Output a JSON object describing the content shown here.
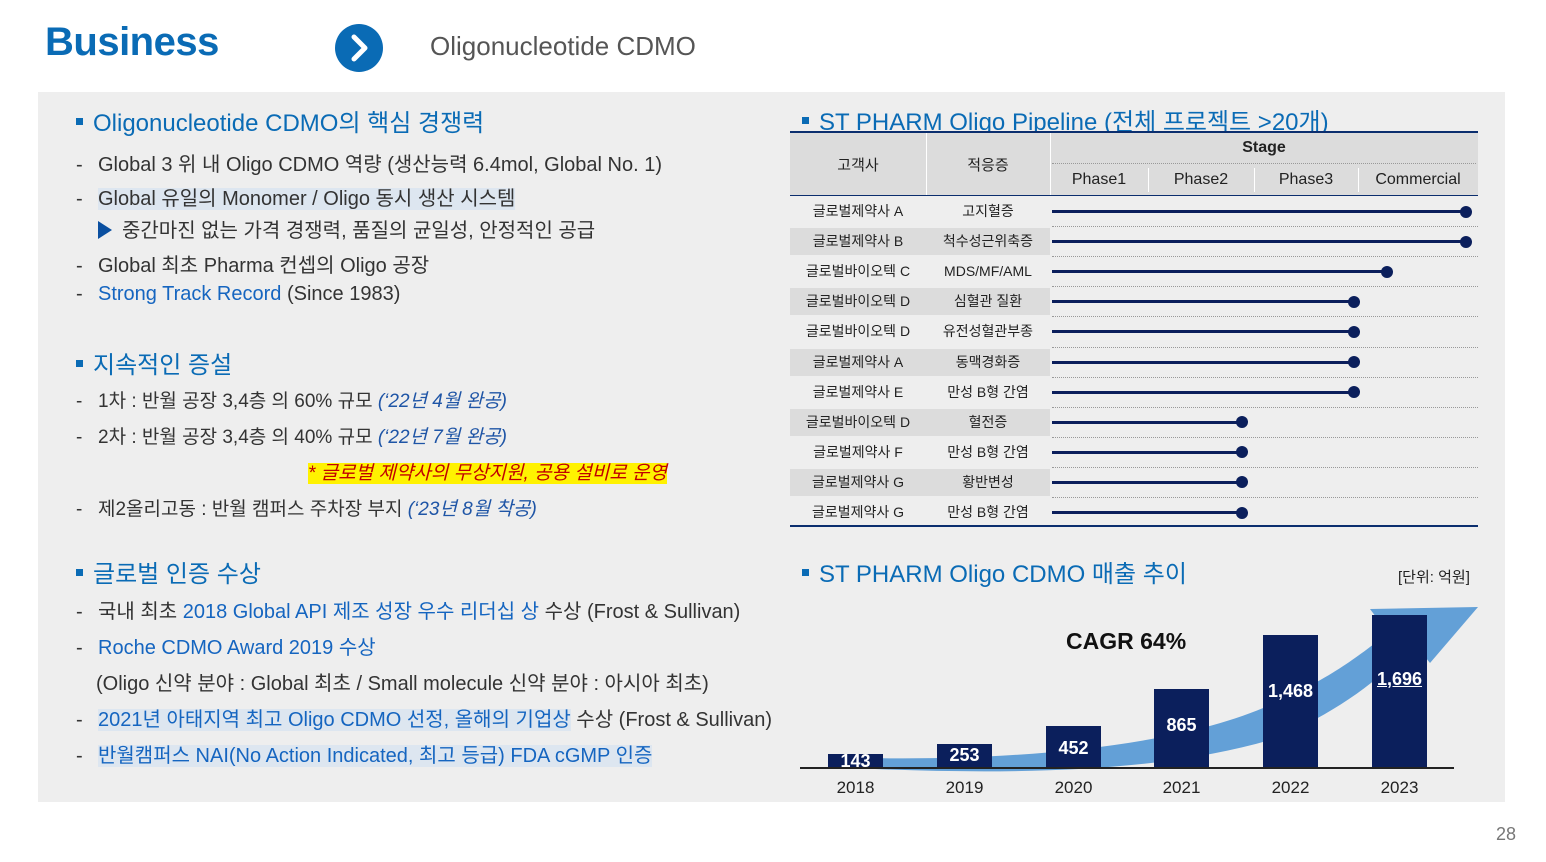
{
  "header": {
    "title": "Business",
    "subtitle": "Oligonucleotide CDMO",
    "page_number": "28"
  },
  "left": {
    "s1": {
      "heading": "Oligonucleotide CDMO의 핵심 경쟁력",
      "items": [
        "Global 3 위 내 Oligo CDMO 역량 (생산능력 6.4mol, Global No. 1)",
        "Global 유일의 Monomer / Oligo 동시 생산 시스템",
        "중간마진 없는 가격 경쟁력, 품질의 균일성, 안정적인 공급",
        "Global 최초 Pharma 컨셉의 Oligo 공장",
        "Strong Track Record",
        " (Since 1983)"
      ]
    },
    "s2": {
      "heading": "지속적인 증설",
      "item1": "1차 :  반월 공장 3,4층 의 60% 규모 ",
      "item1_note": "(‘22년  4월 완공)",
      "item2": "2차 : 반월 공장 3,4층 의 40% 규모 ",
      "item2_note": "(‘22년 7월 완공)",
      "highlight": "* 글로벌 제약사의 무상지원, 공용 설비로 운영",
      "item3": "제2올리고동 : 반월 캠퍼스 주차장 부지 ",
      "item3_note": "(‘23년 8월 착공)"
    },
    "s3": {
      "heading": "글로벌 인증 수상",
      "a_pre": "국내 최초 ",
      "a_blue": "2018 Global API 제조 성장 우수 리더십 상",
      "a_post": " 수상 (Frost & Sullivan)",
      "b": "Roche CDMO Award 2019 수상",
      "c": "(Oligo 신약 분야 : Global 최초 / Small molecule 신약 분야 : 아시아 최초)",
      "d_blue": "2021년 아태지역 최고 Oligo CDMO 선정, 올해의 기업상",
      "d_post": " 수상 (Frost & Sullivan)",
      "e": "반월캠퍼스 NAI(No Action Indicated, 최고 등급) FDA cGMP 인증"
    }
  },
  "pipeline": {
    "heading": "ST PHARM Oligo Pipeline  (전체 프로젝트 >20개)",
    "col_customer": "고객사",
    "col_indication": "적응증",
    "col_stage": "Stage",
    "phases": [
      "Phase1",
      "Phase2",
      "Phase3",
      "Commercial"
    ],
    "rows": [
      {
        "customer": "글로벌제약사 A",
        "indication": "고지혈증",
        "progress": 1.0
      },
      {
        "customer": "글로벌제약사 B",
        "indication": "척수성근위축증",
        "progress": 1.0
      },
      {
        "customer": "글로벌바이오텍 C",
        "indication": "MDS/MF/AML",
        "progress": 0.81
      },
      {
        "customer": "글로벌바이오텍 D",
        "indication": "심혈관 질환",
        "progress": 0.73
      },
      {
        "customer": "글로벌바이오텍 D",
        "indication": "유전성혈관부종",
        "progress": 0.73
      },
      {
        "customer": "글로벌제약사 A",
        "indication": "동맥경화증",
        "progress": 0.73
      },
      {
        "customer": "글로벌제약사 E",
        "indication": "만성 B형 간염",
        "progress": 0.73
      },
      {
        "customer": "글로벌바이오텍 D",
        "indication": "혈전증",
        "progress": 0.46
      },
      {
        "customer": "글로벌제약사 F",
        "indication": "만성 B형 간염",
        "progress": 0.46
      },
      {
        "customer": "글로벌제약사 G",
        "indication": "황반변성",
        "progress": 0.46
      },
      {
        "customer": "글로벌제약사 G",
        "indication": "만성 B형 간염",
        "progress": 0.46
      }
    ]
  },
  "revenue": {
    "heading": "ST PHARM Oligo CDMO 매출 추이",
    "unit": "[단위: 억원]",
    "cagr": "CAGR 64%"
  },
  "chart_data": {
    "type": "bar",
    "title": "ST PHARM Oligo CDMO 매출 추이",
    "ylabel": "[단위: 억원]",
    "categories": [
      "2018",
      "2019",
      "2020",
      "2021",
      "2022",
      "2023"
    ],
    "values": [
      143,
      253,
      452,
      865,
      1468,
      1696
    ],
    "annotation": "CAGR 64%"
  },
  "colors": {
    "accent": "#0a6bb5",
    "navy": "#0b1f5c",
    "arrow": "#5b9bd5",
    "highlight": "#fff200"
  }
}
